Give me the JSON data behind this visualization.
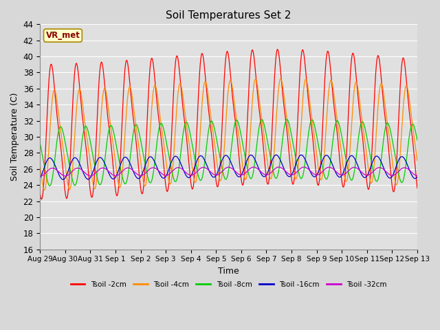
{
  "title": "Soil Temperatures Set 2",
  "xlabel": "Time",
  "ylabel": "Soil Temperature (C)",
  "ylim": [
    16,
    44
  ],
  "yticks": [
    16,
    18,
    20,
    22,
    24,
    26,
    28,
    30,
    32,
    34,
    36,
    38,
    40,
    42,
    44
  ],
  "background_color": "#d8d8d8",
  "plot_bg_color": "#e0e0e0",
  "colors": [
    "#ff0000",
    "#ff8c00",
    "#00cc00",
    "#0000cc",
    "#cc00cc"
  ],
  "labels": [
    "Tsoil -2cm",
    "Tsoil -4cm",
    "Tsoil -8cm",
    "Tsoil -16cm",
    "Tsoil -32cm"
  ],
  "annotation_text": "VR_met",
  "xtick_labels": [
    "Aug 29",
    "Aug 30",
    "Aug 31",
    "Sep 1",
    "Sep 2",
    "Sep 3",
    "Sep 4",
    "Sep 5",
    "Sep 6",
    "Sep 7",
    "Sep 8",
    "Sep 9",
    "Sep 10",
    "Sep 11",
    "Sep 12",
    "Sep 13"
  ],
  "xtick_positions": [
    0,
    1,
    2,
    3,
    4,
    5,
    6,
    7,
    8,
    9,
    10,
    11,
    12,
    13,
    14,
    15
  ],
  "start_day": 0,
  "end_day": 15,
  "n_points": 4000,
  "depth_params": [
    {
      "mean": 30.5,
      "amp": 9.5,
      "phase": 0.0,
      "skew": 0.6,
      "phase_days": 0.0,
      "trend_amp": 2.0,
      "trend_peak": 9.5
    },
    {
      "mean": 29.5,
      "amp": 7.0,
      "phase": 0.0,
      "skew": 0.5,
      "phase_days": 0.12,
      "trend_amp": 1.5,
      "trend_peak": 9.5
    },
    {
      "mean": 27.5,
      "amp": 4.0,
      "phase": 0.0,
      "skew": 0.3,
      "phase_days": 0.35,
      "trend_amp": 1.0,
      "trend_peak": 9.5
    },
    {
      "mean": 26.0,
      "amp": 1.4,
      "phase": 0.0,
      "skew": 0.1,
      "phase_days": 0.9,
      "trend_amp": 0.4,
      "trend_peak": 9.5
    },
    {
      "mean": 25.6,
      "amp": 0.5,
      "phase": 0.0,
      "skew": 0.05,
      "phase_days": 2.0,
      "trend_amp": 0.15,
      "trend_peak": 9.5
    }
  ]
}
